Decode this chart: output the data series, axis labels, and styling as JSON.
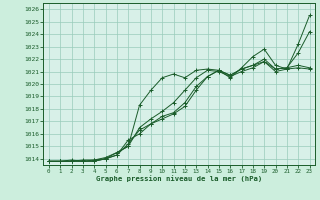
{
  "xlabel": "Graphe pression niveau de la mer (hPa)",
  "xlim": [
    -0.5,
    23.5
  ],
  "ylim": [
    1013.5,
    1026.5
  ],
  "yticks": [
    1014,
    1015,
    1016,
    1017,
    1018,
    1019,
    1020,
    1021,
    1022,
    1023,
    1024,
    1025,
    1026
  ],
  "xticks": [
    0,
    1,
    2,
    3,
    4,
    5,
    6,
    7,
    8,
    9,
    10,
    11,
    12,
    13,
    14,
    15,
    16,
    17,
    18,
    19,
    20,
    21,
    22,
    23
  ],
  "background_color": "#cceedd",
  "plot_bg_color": "#d8f0e8",
  "grid_color": "#99ccbb",
  "line_color": "#1a5c2a",
  "series": [
    {
      "x": [
        0,
        1,
        2,
        3,
        4,
        5,
        6,
        7,
        8,
        9,
        10,
        11,
        12,
        13,
        14,
        15,
        16,
        17,
        18,
        19,
        20,
        21,
        22,
        23
      ],
      "y": [
        1013.8,
        1013.8,
        1013.9,
        1013.8,
        1013.8,
        1014.0,
        1014.5,
        1015.0,
        1018.3,
        1019.5,
        1020.5,
        1020.8,
        1020.5,
        1021.1,
        1021.2,
        1021.1,
        1020.5,
        1021.3,
        1022.2,
        1022.8,
        1021.5,
        1021.2,
        1023.2,
        1025.5
      ]
    },
    {
      "x": [
        0,
        1,
        2,
        3,
        4,
        5,
        6,
        7,
        8,
        9,
        10,
        11,
        12,
        13,
        14,
        15,
        16,
        17,
        18,
        19,
        20,
        21,
        22,
        23
      ],
      "y": [
        1013.8,
        1013.8,
        1013.8,
        1013.8,
        1013.8,
        1014.0,
        1014.3,
        1015.2,
        1016.3,
        1016.8,
        1017.2,
        1017.6,
        1018.2,
        1019.5,
        1020.6,
        1021.1,
        1020.7,
        1021.2,
        1021.5,
        1022.0,
        1021.2,
        1021.3,
        1022.5,
        1024.2
      ]
    },
    {
      "x": [
        0,
        1,
        2,
        3,
        4,
        5,
        6,
        7,
        8,
        9,
        10,
        11,
        12,
        13,
        14,
        15,
        16,
        17,
        18,
        19,
        20,
        21,
        22,
        23
      ],
      "y": [
        1013.8,
        1013.8,
        1013.8,
        1013.8,
        1013.9,
        1014.0,
        1014.3,
        1015.5,
        1016.0,
        1016.8,
        1017.4,
        1017.7,
        1018.5,
        1019.8,
        1020.6,
        1021.1,
        1020.7,
        1021.2,
        1021.5,
        1021.8,
        1021.2,
        1021.3,
        1021.5,
        1021.3
      ]
    },
    {
      "x": [
        0,
        1,
        2,
        3,
        4,
        5,
        6,
        7,
        8,
        9,
        10,
        11,
        12,
        13,
        14,
        15,
        16,
        17,
        18,
        19,
        20,
        21,
        22,
        23
      ],
      "y": [
        1013.8,
        1013.8,
        1013.8,
        1013.9,
        1013.9,
        1014.1,
        1014.5,
        1015.0,
        1016.5,
        1017.2,
        1017.8,
        1018.5,
        1019.5,
        1020.5,
        1021.1,
        1021.0,
        1020.6,
        1021.0,
        1021.3,
        1021.8,
        1021.0,
        1021.2,
        1021.3,
        1021.2
      ]
    }
  ]
}
